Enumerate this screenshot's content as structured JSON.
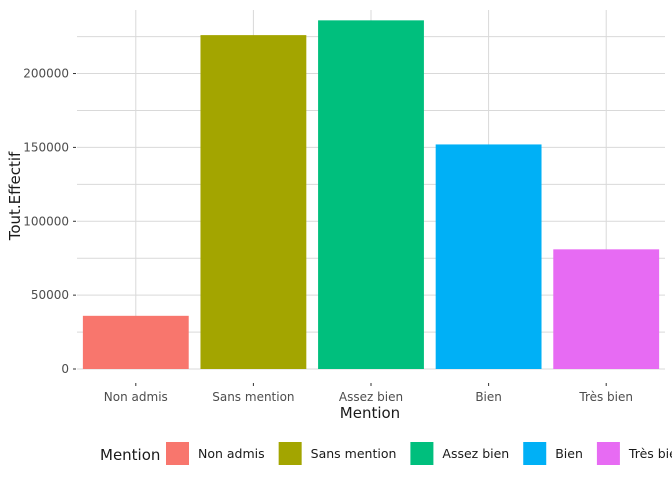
{
  "chart_data": {
    "type": "bar",
    "categories": [
      "Non admis",
      "Sans mention",
      "Assez bien",
      "Bien",
      "Très bien"
    ],
    "values": [
      36000,
      226000,
      236000,
      152000,
      81000
    ],
    "colors": [
      "#F8766D",
      "#A3A500",
      "#00BF7D",
      "#00B0F6",
      "#E76BF3"
    ],
    "xlabel": "Mention",
    "ylabel": "Tout.Effectif",
    "ylim": [
      0,
      243000
    ],
    "yticks": [
      0,
      50000,
      100000,
      150000,
      200000
    ],
    "ytick_labels": [
      "0",
      "50000",
      "100000",
      "150000",
      "200000"
    ],
    "grid": true,
    "legend_title": "Mention",
    "legend_position": "bottom"
  }
}
